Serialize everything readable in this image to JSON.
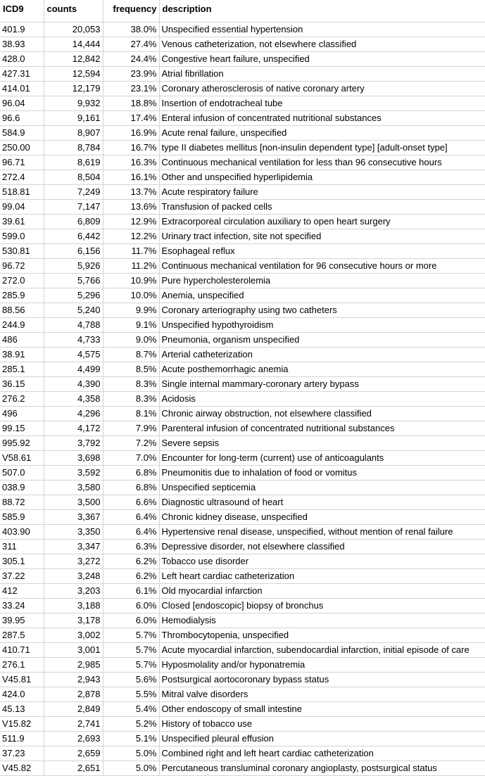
{
  "table": {
    "headers": [
      "ICD9",
      "counts",
      "frequency",
      "description"
    ],
    "rows": [
      [
        "401.9",
        "20,053",
        "38.0%",
        "Unspecified essential hypertension"
      ],
      [
        "38.93",
        "14,444",
        "27.4%",
        "Venous catheterization, not elsewhere classified"
      ],
      [
        "428.0",
        "12,842",
        "24.4%",
        "Congestive heart failure, unspecified"
      ],
      [
        "427.31",
        "12,594",
        "23.9%",
        "Atrial fibrillation"
      ],
      [
        "414.01",
        "12,179",
        "23.1%",
        "Coronary atherosclerosis of native coronary artery"
      ],
      [
        "96.04",
        "9,932",
        "18.8%",
        "Insertion of endotracheal tube"
      ],
      [
        "96.6",
        "9,161",
        "17.4%",
        "Enteral infusion of concentrated nutritional substances"
      ],
      [
        "584.9",
        "8,907",
        "16.9%",
        "Acute renal failure, unspecified"
      ],
      [
        "250.00",
        "8,784",
        "16.7%",
        "type II diabetes mellitus [non-insulin dependent type] [adult-onset type]"
      ],
      [
        "96.71",
        "8,619",
        "16.3%",
        "Continuous mechanical ventilation for less than 96 consecutive hours"
      ],
      [
        "272.4",
        "8,504",
        "16.1%",
        "Other and unspecified hyperlipidemia"
      ],
      [
        "518.81",
        "7,249",
        "13.7%",
        "Acute respiratory failure"
      ],
      [
        "99.04",
        "7,147",
        "13.6%",
        "Transfusion of packed cells"
      ],
      [
        "39.61",
        "6,809",
        "12.9%",
        "Extracorporeal circulation auxiliary to open heart surgery"
      ],
      [
        "599.0",
        "6,442",
        "12.2%",
        "Urinary tract infection, site not specified"
      ],
      [
        "530.81",
        "6,156",
        "11.7%",
        "Esophageal reflux"
      ],
      [
        "96.72",
        "5,926",
        "11.2%",
        "Continuous mechanical ventilation for 96 consecutive hours or more"
      ],
      [
        "272.0",
        "5,766",
        "10.9%",
        "Pure hypercholesterolemia"
      ],
      [
        "285.9",
        "5,296",
        "10.0%",
        "Anemia, unspecified"
      ],
      [
        "88.56",
        "5,240",
        "9.9%",
        "Coronary arteriography using two catheters"
      ],
      [
        "244.9",
        "4,788",
        "9.1%",
        "Unspecified hypothyroidism"
      ],
      [
        "486",
        "4,733",
        "9.0%",
        "Pneumonia, organism unspecified"
      ],
      [
        "38.91",
        "4,575",
        "8.7%",
        "Arterial catheterization"
      ],
      [
        "285.1",
        "4,499",
        "8.5%",
        "Acute posthemorrhagic anemia"
      ],
      [
        "36.15",
        "4,390",
        "8.3%",
        "Single internal mammary-coronary artery bypass"
      ],
      [
        "276.2",
        "4,358",
        "8.3%",
        "Acidosis"
      ],
      [
        "496",
        "4,296",
        "8.1%",
        "Chronic airway obstruction, not elsewhere classified"
      ],
      [
        "99.15",
        "4,172",
        "7.9%",
        "Parenteral infusion of concentrated nutritional substances"
      ],
      [
        "995.92",
        "3,792",
        "7.2%",
        "Severe sepsis"
      ],
      [
        "V58.61",
        "3,698",
        "7.0%",
        "Encounter for long-term (current) use of anticoagulants"
      ],
      [
        "507.0",
        "3,592",
        "6.8%",
        "Pneumonitis due to inhalation of food or vomitus"
      ],
      [
        "038.9",
        "3,580",
        "6.8%",
        "Unspecified septicemia"
      ],
      [
        "88.72",
        "3,500",
        "6.6%",
        "Diagnostic ultrasound of heart"
      ],
      [
        "585.9",
        "3,367",
        "6.4%",
        "Chronic kidney disease, unspecified"
      ],
      [
        "403.90",
        "3,350",
        "6.4%",
        "Hypertensive renal disease, unspecified, without mention of renal failure"
      ],
      [
        "311",
        "3,347",
        "6.3%",
        "Depressive disorder, not elsewhere classified"
      ],
      [
        "305.1",
        "3,272",
        "6.2%",
        "Tobacco use disorder"
      ],
      [
        "37.22",
        "3,248",
        "6.2%",
        "Left heart cardiac catheterization"
      ],
      [
        "412",
        "3,203",
        "6.1%",
        "Old myocardial infarction"
      ],
      [
        "33.24",
        "3,188",
        "6.0%",
        "Closed [endoscopic] biopsy of bronchus"
      ],
      [
        "39.95",
        "3,178",
        "6.0%",
        "Hemodialysis"
      ],
      [
        "287.5",
        "3,002",
        "5.7%",
        "Thrombocytopenia, unspecified"
      ],
      [
        "410.71",
        "3,001",
        "5.7%",
        "Acute myocardial infarction, subendocardial infarction, initial episode of care"
      ],
      [
        "276.1",
        "2,985",
        "5.7%",
        "Hyposmolality and/or hyponatremia"
      ],
      [
        "V45.81",
        "2,943",
        "5.6%",
        "Postsurgical aortocoronary bypass status"
      ],
      [
        "424.0",
        "2,878",
        "5.5%",
        "Mitral valve disorders"
      ],
      [
        "45.13",
        "2,849",
        "5.4%",
        "Other endoscopy of small intestine"
      ],
      [
        "V15.82",
        "2,741",
        "5.2%",
        "History of tobacco use"
      ],
      [
        "511.9",
        "2,693",
        "5.1%",
        "Unspecified pleural effusion"
      ],
      [
        "37.23",
        "2,659",
        "5.0%",
        "Combined right and left heart cardiac catheterization"
      ],
      [
        "V45.82",
        "2,651",
        "5.0%",
        "Percutaneous transluminal coronary angioplasty, postsurgical status"
      ]
    ]
  }
}
